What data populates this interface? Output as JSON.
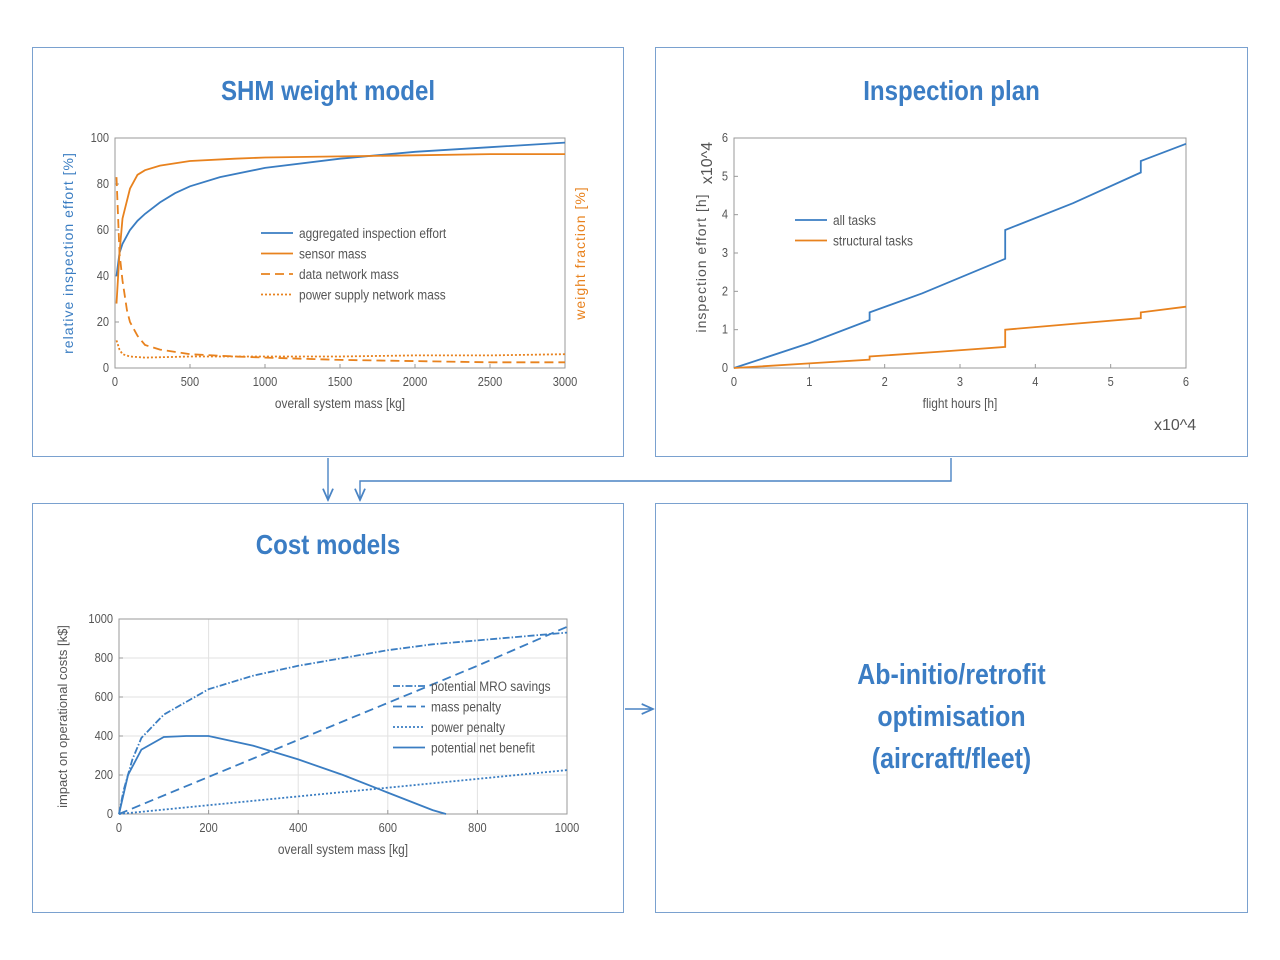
{
  "panels": {
    "weight_title": "SHM weight model",
    "inspection_title": "Inspection plan",
    "cost_title": "Cost models",
    "optim_lines": [
      "Ab-initio/retrofit",
      "optimisation",
      "(aircraft/fleet)"
    ]
  },
  "colors": {
    "blue": "#3a7dc2",
    "orange": "#e8821e",
    "panel_border": "#7aa1cf",
    "title": "#3b7dc4"
  },
  "chart_data": [
    {
      "type": "line",
      "xlabel": "overall system mass [kg]",
      "ylabel": "relative inspection effort [%]",
      "ylabel_right": "weight fraction [%]",
      "xlim": [
        0,
        3000
      ],
      "ylim": [
        0,
        100
      ],
      "xticks": [
        "0",
        "500",
        "1000",
        "1500",
        "2000",
        "2500",
        "3000"
      ],
      "yticks": [
        "0",
        "20",
        "40",
        "60",
        "80",
        "100"
      ],
      "grid": false,
      "legend_position": "center-right",
      "series": [
        {
          "name": "aggregated inspection effort",
          "color": "#3a7dc2",
          "dash": "solid",
          "x": [
            10,
            30,
            50,
            100,
            150,
            200,
            300,
            400,
            500,
            700,
            1000,
            1500,
            2000,
            2500,
            3000
          ],
          "y": [
            40,
            50,
            54,
            60,
            64,
            67,
            72,
            76,
            79,
            83,
            87,
            91,
            94,
            96,
            98
          ]
        },
        {
          "name": "sensor mass",
          "color": "#e8821e",
          "dash": "solid",
          "x": [
            10,
            30,
            50,
            100,
            150,
            200,
            300,
            500,
            800,
            1000,
            1500,
            2000,
            2500,
            3000
          ],
          "y": [
            28,
            50,
            65,
            78,
            84,
            86,
            88,
            90,
            91,
            91.5,
            92,
            92.5,
            93,
            93
          ]
        },
        {
          "name": "data network mass",
          "color": "#e8821e",
          "dash": "dashed",
          "x": [
            10,
            30,
            50,
            80,
            100,
            150,
            200,
            300,
            500,
            800,
            1000,
            1500,
            2000,
            2500,
            3000
          ],
          "y": [
            83,
            50,
            38,
            25,
            20,
            14,
            10,
            8,
            6,
            5,
            4.5,
            3.5,
            3,
            2.5,
            2.5
          ]
        },
        {
          "name": "power supply network mass",
          "color": "#e8821e",
          "dash": "dotted",
          "x": [
            10,
            30,
            50,
            100,
            200,
            500,
            1000,
            1500,
            2000,
            2500,
            3000
          ],
          "y": [
            12,
            8,
            6,
            5,
            4.5,
            5,
            5,
            5,
            5.5,
            5.5,
            6
          ]
        }
      ]
    },
    {
      "type": "line",
      "xlabel": "flight hours [h]",
      "ylabel": "inspection effort [h]",
      "x_multiplier": "x10^4",
      "y_multiplier": "x10^4",
      "xlim": [
        0,
        6
      ],
      "ylim": [
        0,
        6
      ],
      "xticks": [
        "0",
        "1",
        "2",
        "3",
        "4",
        "5",
        "6"
      ],
      "yticks": [
        "0",
        "1",
        "2",
        "3",
        "4",
        "5",
        "6"
      ],
      "grid": false,
      "legend_position": "top-left",
      "series": [
        {
          "name": "all tasks",
          "color": "#3a7dc2",
          "dash": "solid",
          "x": [
            0,
            1,
            1.8,
            1.8,
            2.5,
            3.6,
            3.6,
            4.5,
            5.4,
            5.4,
            6
          ],
          "y": [
            0,
            0.65,
            1.25,
            1.45,
            1.95,
            2.85,
            3.6,
            4.3,
            5.1,
            5.4,
            5.85
          ]
        },
        {
          "name": "structural tasks",
          "color": "#e8821e",
          "dash": "solid",
          "x": [
            0,
            1,
            1.8,
            1.8,
            2.7,
            3.6,
            3.6,
            4.5,
            5.4,
            5.4,
            6
          ],
          "y": [
            0,
            0.12,
            0.22,
            0.3,
            0.42,
            0.55,
            1.0,
            1.15,
            1.3,
            1.45,
            1.6
          ]
        }
      ]
    },
    {
      "type": "line",
      "xlabel": "overall system mass [kg]",
      "ylabel": "impact on operational costs [k$]",
      "xlim": [
        0,
        1000
      ],
      "ylim": [
        0,
        1000
      ],
      "xticks": [
        "0",
        "200",
        "400",
        "600",
        "800",
        "1000"
      ],
      "yticks": [
        "0",
        "200",
        "400",
        "600",
        "800",
        "1000"
      ],
      "grid": true,
      "legend_position": "center-right",
      "series": [
        {
          "name": "potential MRO savings",
          "color": "#3a7dc2",
          "dash": "dashdot",
          "x": [
            0,
            10,
            30,
            50,
            100,
            200,
            300,
            400,
            500,
            600,
            700,
            800,
            900,
            1000
          ],
          "y": [
            0,
            120,
            280,
            390,
            510,
            640,
            710,
            760,
            800,
            840,
            870,
            890,
            910,
            930
          ]
        },
        {
          "name": "mass penalty",
          "color": "#3a7dc2",
          "dash": "dashed",
          "x": [
            0,
            200,
            400,
            600,
            800,
            1000
          ],
          "y": [
            0,
            190,
            380,
            570,
            760,
            960
          ]
        },
        {
          "name": "power penalty",
          "color": "#3a7dc2",
          "dash": "dotted",
          "x": [
            0,
            200,
            400,
            600,
            800,
            1000
          ],
          "y": [
            0,
            45,
            90,
            135,
            180,
            225
          ]
        },
        {
          "name": "potential net benefit",
          "color": "#3a7dc2",
          "dash": "solid",
          "x": [
            0,
            20,
            50,
            100,
            150,
            200,
            300,
            400,
            500,
            600,
            700,
            730
          ],
          "y": [
            0,
            200,
            330,
            395,
            400,
            400,
            350,
            280,
            200,
            110,
            20,
            0
          ]
        }
      ]
    }
  ]
}
